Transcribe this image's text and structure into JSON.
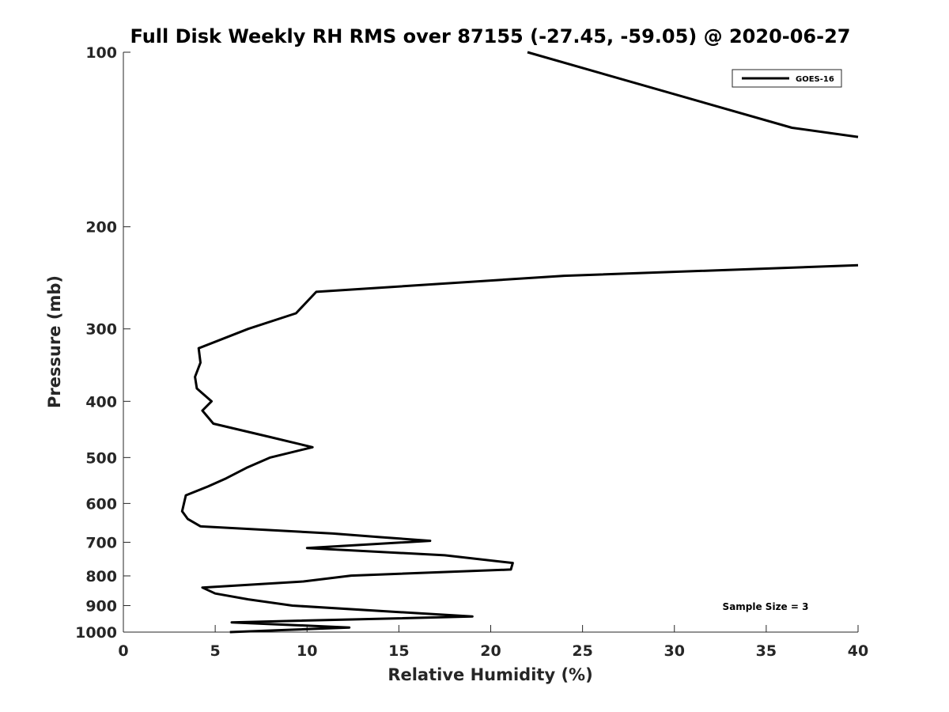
{
  "chart_data": {
    "type": "line",
    "title": "Full Disk Weekly RH RMS over 87155 (-27.45, -59.05) @ 2020-06-27",
    "xlabel": "Relative Humidity (%)",
    "ylabel": "Pressure (mb)",
    "xlim": [
      0,
      40
    ],
    "ylim": [
      1000,
      100
    ],
    "y_scale": "log",
    "y_reversed": true,
    "x_ticks": [
      0,
      5,
      10,
      15,
      20,
      25,
      30,
      35,
      40
    ],
    "y_ticks": [
      100,
      200,
      300,
      400,
      500,
      600,
      700,
      800,
      900,
      1000
    ],
    "grid": false,
    "legend_position": "top-right",
    "annotation": "Sample Size = 3",
    "series": [
      {
        "name": "GOES-16",
        "color": "#000000",
        "segments": [
          [
            {
              "x": 22.0,
              "y": 100
            },
            {
              "x": 36.4,
              "y": 135
            },
            {
              "x": 40.0,
              "y": 140
            }
          ],
          [
            {
              "x": 40.0,
              "y": 233
            },
            {
              "x": 24.0,
              "y": 243
            },
            {
              "x": 10.5,
              "y": 259
            },
            {
              "x": 9.4,
              "y": 282
            },
            {
              "x": 6.8,
              "y": 300
            },
            {
              "x": 4.1,
              "y": 324
            },
            {
              "x": 4.2,
              "y": 343
            },
            {
              "x": 3.9,
              "y": 363
            },
            {
              "x": 4.0,
              "y": 380
            },
            {
              "x": 4.8,
              "y": 400
            },
            {
              "x": 4.3,
              "y": 415
            },
            {
              "x": 4.9,
              "y": 437
            },
            {
              "x": 8.0,
              "y": 461
            },
            {
              "x": 10.3,
              "y": 480
            },
            {
              "x": 8.0,
              "y": 500
            },
            {
              "x": 6.7,
              "y": 521
            },
            {
              "x": 5.6,
              "y": 543
            },
            {
              "x": 4.6,
              "y": 561
            },
            {
              "x": 3.4,
              "y": 581
            },
            {
              "x": 3.3,
              "y": 600
            },
            {
              "x": 3.2,
              "y": 619
            },
            {
              "x": 3.5,
              "y": 638
            },
            {
              "x": 4.2,
              "y": 657
            },
            {
              "x": 11.4,
              "y": 676
            },
            {
              "x": 14.0,
              "y": 686
            },
            {
              "x": 16.7,
              "y": 696
            },
            {
              "x": 10.0,
              "y": 716
            },
            {
              "x": 17.5,
              "y": 737
            },
            {
              "x": 21.2,
              "y": 760
            },
            {
              "x": 21.1,
              "y": 780
            },
            {
              "x": 12.4,
              "y": 799
            },
            {
              "x": 9.8,
              "y": 818
            },
            {
              "x": 4.3,
              "y": 838
            },
            {
              "x": 5.0,
              "y": 858
            },
            {
              "x": 6.8,
              "y": 878
            },
            {
              "x": 9.2,
              "y": 900
            },
            {
              "x": 19.0,
              "y": 940
            },
            {
              "x": 5.9,
              "y": 962
            },
            {
              "x": 12.3,
              "y": 982
            },
            {
              "x": 5.8,
              "y": 1000
            }
          ]
        ]
      }
    ]
  }
}
